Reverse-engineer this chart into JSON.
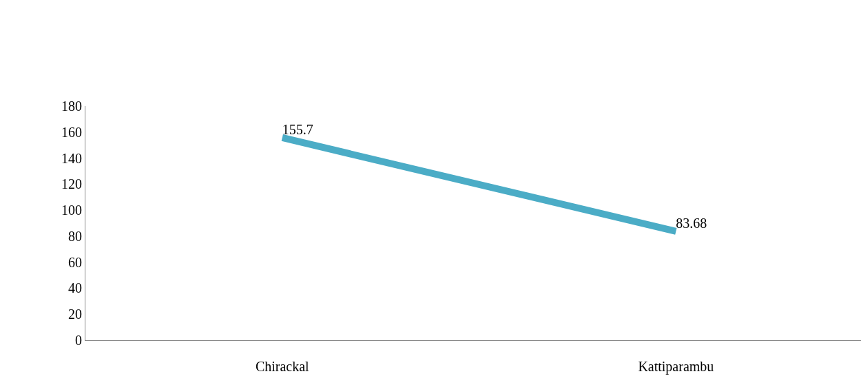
{
  "chart_data": {
    "type": "line",
    "categories": [
      "Chirackal",
      "Kattiparambu"
    ],
    "series": [
      {
        "color": "#4bacc6",
        "values": [
          155.7,
          83.68
        ]
      }
    ],
    "ylim": [
      0,
      180
    ],
    "yticks": [
      0,
      20,
      40,
      60,
      80,
      100,
      120,
      140,
      160,
      180
    ],
    "marker": "none",
    "line_style": "solid",
    "data_labels": true
  }
}
